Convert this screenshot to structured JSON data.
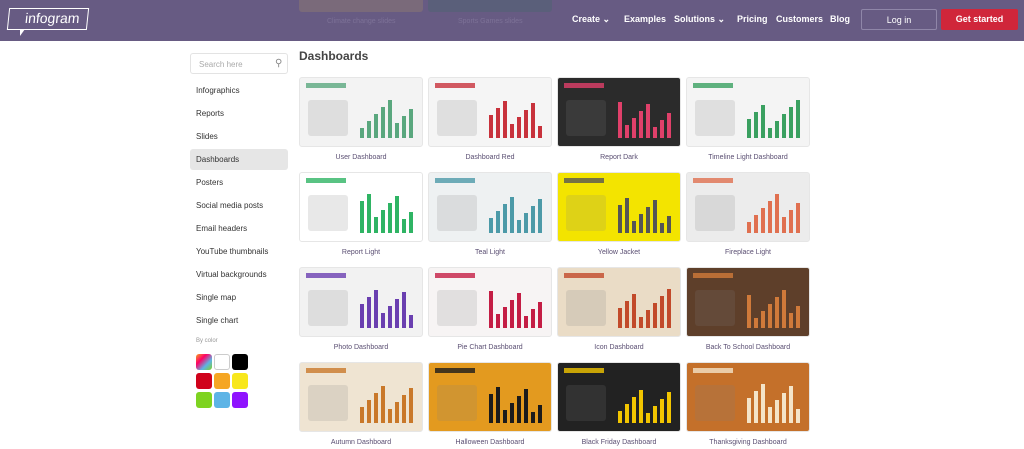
{
  "header": {
    "logo": "infogram",
    "peek_items": [
      "Climate change slides",
      "Sports Games slides"
    ],
    "nav": [
      {
        "label": "Create",
        "dropdown": true
      },
      {
        "label": "Examples"
      },
      {
        "label": "Solutions",
        "dropdown": true
      },
      {
        "label": "Pricing"
      },
      {
        "label": "Customers"
      },
      {
        "label": "Blog"
      }
    ],
    "login": "Log in",
    "get_started": "Get started",
    "accent": "#d0263a",
    "bg": "#675b83"
  },
  "sidebar": {
    "search_placeholder": "Search here",
    "items": [
      "Infographics",
      "Reports",
      "Slides",
      "Dashboards",
      "Posters",
      "Social media posts",
      "Email headers",
      "YouTube thumbnails",
      "Virtual backgrounds",
      "Single map",
      "Single chart"
    ],
    "active": "Dashboards",
    "by_color": "By color",
    "colors": [
      "multicolor",
      "#ffffff",
      "#000000",
      "#d0021b",
      "#f5a623",
      "#f8e71c",
      "#7ed321",
      "#5db4e6",
      "#9013fe"
    ]
  },
  "main": {
    "title": "Dashboards",
    "templates": [
      {
        "name": "User Dashboard",
        "bg": "#f3f3f3",
        "accent": "#5aa77e"
      },
      {
        "name": "Dashboard Red",
        "bg": "#f5f5f5",
        "accent": "#c8323c"
      },
      {
        "name": "Report Dark",
        "bg": "#2b2b2b",
        "accent": "#e0406a"
      },
      {
        "name": "Timeline Light Dashboard",
        "bg": "#f4f4f4",
        "accent": "#3aa060"
      },
      {
        "name": "Report Light",
        "bg": "#ffffff",
        "accent": "#2fb464"
      },
      {
        "name": "Teal Light",
        "bg": "#eef1f2",
        "accent": "#4c9aa8"
      },
      {
        "name": "Yellow Jacket",
        "bg": "#f3e400",
        "accent": "#555555"
      },
      {
        "name": "Fireplace Light",
        "bg": "#ececec",
        "accent": "#e07050"
      },
      {
        "name": "Photo Dashboard",
        "bg": "#f2f2f2",
        "accent": "#6a3fb0"
      },
      {
        "name": "Pie Chart Dashboard",
        "bg": "#f7f4f4",
        "accent": "#c41e45"
      },
      {
        "name": "Icon Dashboard",
        "bg": "#eadcc6",
        "accent": "#c24a2a"
      },
      {
        "name": "Back To School Dashboard",
        "bg": "#5e3f2a",
        "accent": "#d07a3a"
      },
      {
        "name": "Autumn Dashboard",
        "bg": "#efe4d2",
        "accent": "#c9782a"
      },
      {
        "name": "Halloween Dashboard",
        "bg": "#e39a1f",
        "accent": "#1b1b1b"
      },
      {
        "name": "Black Friday Dashboard",
        "bg": "#222222",
        "accent": "#f2c500"
      },
      {
        "name": "Thanksgiving Dashboard",
        "bg": "#c4702a",
        "accent": "#f4e4c8"
      }
    ]
  }
}
